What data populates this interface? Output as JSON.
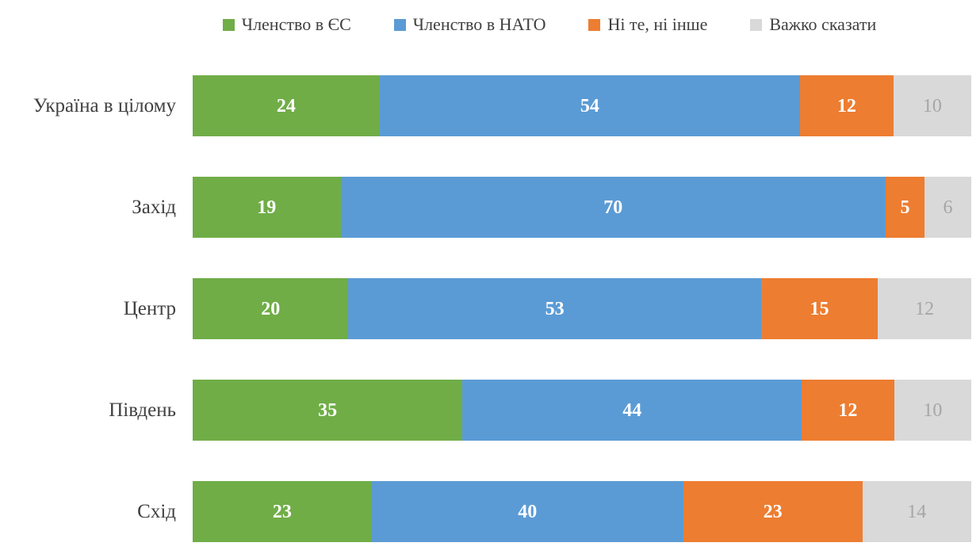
{
  "chart_data": {
    "type": "bar",
    "orientation": "horizontal",
    "stacked": true,
    "title": "",
    "xlabel": "",
    "ylabel": "",
    "xlim": [
      0,
      100
    ],
    "grid": false,
    "legend_position": "top",
    "categories": [
      "Україна в цілому",
      "Захід",
      "Центр",
      "Південь",
      "Схід"
    ],
    "series": [
      {
        "name": "Членство в ЄС",
        "color": "#70AD47",
        "value_color": "#FFFFFF",
        "muted_values": false,
        "values": [
          24,
          19,
          20,
          35,
          23
        ]
      },
      {
        "name": "Членство в НАТО",
        "color": "#5B9BD5",
        "value_color": "#FFFFFF",
        "muted_values": false,
        "values": [
          54,
          70,
          53,
          44,
          40
        ]
      },
      {
        "name": "Ні те, ні інше",
        "color": "#ED7D31",
        "value_color": "#FFFFFF",
        "muted_values": false,
        "values": [
          12,
          5,
          15,
          12,
          23
        ]
      },
      {
        "name": "Важко сказати",
        "color": "#D9D9D9",
        "value_color": "#A6A6A6",
        "muted_values": true,
        "values": [
          10,
          6,
          12,
          10,
          14
        ]
      }
    ],
    "colors": {
      "background": "#FFFFFF",
      "category_label": "#404040",
      "legend_label": "#404040"
    }
  }
}
